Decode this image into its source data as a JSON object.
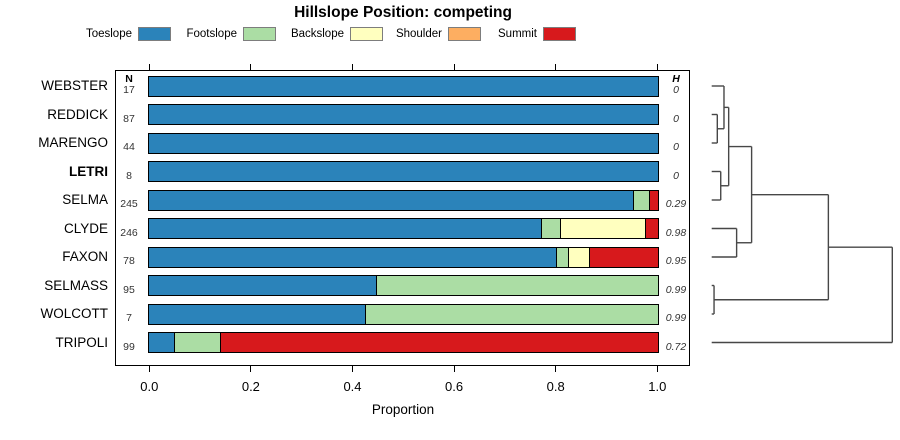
{
  "chart_data": {
    "type": "bar",
    "variant": "horizontal-stacked-with-dendrogram",
    "title": "Hillslope Position: competing",
    "xlabel": "Proportion",
    "xlim": [
      0,
      1
    ],
    "xticks": [
      "0.0",
      "0.2",
      "0.4",
      "0.6",
      "0.8",
      "1.0"
    ],
    "xtick_values": [
      0,
      0.2,
      0.4,
      0.6,
      0.8,
      1.0
    ],
    "legend": [
      {
        "label": "Toeslope",
        "color": "#2B83BA"
      },
      {
        "label": "Footslope",
        "color": "#ABDDA4"
      },
      {
        "label": "Backslope",
        "color": "#FFFFBF"
      },
      {
        "label": "Shoulder",
        "color": "#FDAE61"
      },
      {
        "label": "Summit",
        "color": "#D7191C"
      }
    ],
    "columns": {
      "n_header": "N",
      "h_header": "H"
    },
    "rows": [
      {
        "label": "WEBSTER",
        "n": "17",
        "h": "0",
        "bold": false,
        "proportions": [
          1,
          0,
          0,
          0,
          0
        ]
      },
      {
        "label": "REDDICK",
        "n": "87",
        "h": "0",
        "bold": false,
        "proportions": [
          1,
          0,
          0,
          0,
          0
        ]
      },
      {
        "label": "MARENGO",
        "n": "44",
        "h": "0",
        "bold": false,
        "proportions": [
          1,
          0,
          0,
          0,
          0
        ]
      },
      {
        "label": "LETRI",
        "n": "8",
        "h": "0",
        "bold": true,
        "proportions": [
          1,
          0,
          0,
          0,
          0
        ]
      },
      {
        "label": "SELMA",
        "n": "245",
        "h": "0.29",
        "bold": false,
        "proportions": [
          0.951,
          0.031,
          0,
          0,
          0.018
        ]
      },
      {
        "label": "CLYDE",
        "n": "246",
        "h": "0.98",
        "bold": false,
        "proportions": [
          0.771,
          0.037,
          0.167,
          0,
          0.025
        ]
      },
      {
        "label": "FAXON",
        "n": "78",
        "h": "0.95",
        "bold": false,
        "proportions": [
          0.8,
          0.023,
          0.041,
          0,
          0.136
        ]
      },
      {
        "label": "SELMASS",
        "n": "95",
        "h": "0.99",
        "bold": false,
        "proportions": [
          0.446,
          0.554,
          0,
          0,
          0
        ]
      },
      {
        "label": "WOLCOTT",
        "n": "7",
        "h": "0.99",
        "bold": false,
        "proportions": [
          0.424,
          0.576,
          0,
          0,
          0
        ]
      },
      {
        "label": "TRIPOLI",
        "n": "99",
        "h": "0.72",
        "bold": false,
        "proportions": [
          0.05,
          0.089,
          0,
          0,
          0.861
        ]
      }
    ],
    "dendrogram": {
      "leaf_order": [
        "WEBSTER",
        "REDDICK",
        "MARENGO",
        "LETRI",
        "SELMA",
        "CLYDE",
        "FAXON",
        "SELMASS",
        "WOLCOTT",
        "TRIPOLI"
      ],
      "merges": [
        {
          "id": "m1",
          "a": "REDDICK",
          "b": "MARENGO",
          "h": 0.031
        },
        {
          "id": "m2",
          "a": "WEBSTER",
          "b": "m1",
          "h": 0.068
        },
        {
          "id": "m3",
          "a": "LETRI",
          "b": "SELMA",
          "h": 0.05
        },
        {
          "id": "m4",
          "a": "m2",
          "b": "m3",
          "h": 0.094
        },
        {
          "id": "m5",
          "a": "CLYDE",
          "b": "FAXON",
          "h": 0.138
        },
        {
          "id": "m6",
          "a": "m4",
          "b": "m5",
          "h": 0.221
        },
        {
          "id": "m7",
          "a": "SELMASS",
          "b": "WOLCOTT",
          "h": 0.013
        },
        {
          "id": "m8",
          "a": "m6",
          "b": "m7",
          "h": 0.646
        },
        {
          "id": "root",
          "a": "m8",
          "b": "TRIPOLI",
          "h": 1.0
        }
      ],
      "line_color": "#474747"
    }
  }
}
